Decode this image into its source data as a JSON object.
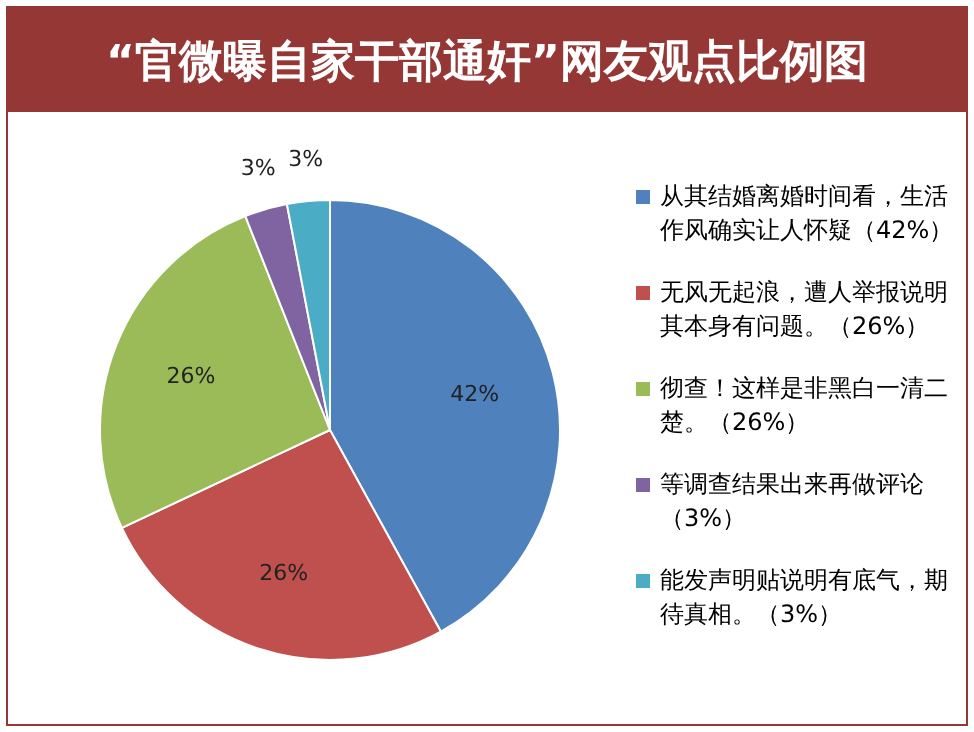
{
  "chart_data": {
    "type": "pie",
    "title": "“官微曝自家干部通奸”网友观点比例图",
    "categories": [
      "从其结婚离婚时间看，生活作风确实让人怀疑（42%）",
      "无风无起浪，遭人举报说明其本身有问题。（26%）",
      "彻查！这样是非黑白一清二楚。（26%）",
      "等调查结果出来再做评论（3%）",
      "能发声明贴说明有底气，期待真相。（3%）"
    ],
    "values": [
      42,
      26,
      26,
      3,
      3
    ],
    "colors": [
      "#4f81bd",
      "#c0504d",
      "#9bbb59",
      "#8064a2",
      "#4bacc6"
    ],
    "value_labels": [
      "42%",
      "26%",
      "26%",
      "3%",
      "3%"
    ],
    "legend": "right"
  }
}
